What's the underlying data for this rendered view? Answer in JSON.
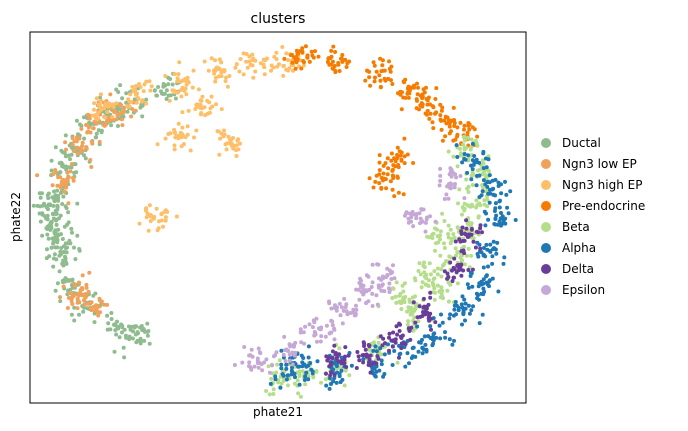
{
  "chart_data": {
    "type": "scatter",
    "title": "clusters",
    "xlabel": "phate21",
    "ylabel": "phate22",
    "xlim": [
      0,
      100
    ],
    "ylim": [
      0,
      100
    ],
    "grid": false,
    "ticks": false,
    "legend_placement": "right-outside",
    "series": [
      {
        "name": "Ductal",
        "color": "#8fbc8f"
      },
      {
        "name": "Ngn3 low EP",
        "color": "#f0a15a"
      },
      {
        "name": "Ngn3 high EP",
        "color": "#ffbf69"
      },
      {
        "name": "Pre-endocrine",
        "color": "#f57c00"
      },
      {
        "name": "Beta",
        "color": "#b5de8c"
      },
      {
        "name": "Alpha",
        "color": "#1f77b4"
      },
      {
        "name": "Delta",
        "color": "#6a3d9a"
      },
      {
        "name": "Epsilon",
        "color": "#c5a8d6"
      }
    ],
    "density": {
      "Ductal": [
        [
          5,
          55
        ],
        [
          4,
          48
        ],
        [
          6,
          40
        ],
        [
          8,
          33
        ],
        [
          12,
          26
        ],
        [
          18,
          20
        ],
        [
          22,
          18
        ],
        [
          7,
          62
        ],
        [
          9,
          68
        ],
        [
          12,
          74
        ],
        [
          16,
          78
        ],
        [
          20,
          81
        ],
        [
          28,
          84
        ],
        [
          4,
          52
        ],
        [
          6,
          45
        ]
      ],
      "Ngn3 low EP": [
        [
          7,
          60
        ],
        [
          10,
          70
        ],
        [
          14,
          76
        ],
        [
          9,
          30
        ],
        [
          12,
          27
        ],
        [
          18,
          79
        ]
      ],
      "Ngn3 high EP": [
        [
          15,
          80
        ],
        [
          22,
          84
        ],
        [
          30,
          86
        ],
        [
          38,
          89
        ],
        [
          45,
          91
        ],
        [
          52,
          92
        ],
        [
          35,
          80
        ],
        [
          40,
          70
        ],
        [
          30,
          72
        ],
        [
          25,
          50
        ]
      ],
      "Pre-endocrine": [
        [
          55,
          93
        ],
        [
          62,
          92
        ],
        [
          70,
          89
        ],
        [
          76,
          85
        ],
        [
          80,
          81
        ],
        [
          84,
          76
        ],
        [
          88,
          72
        ],
        [
          74,
          65
        ],
        [
          72,
          60
        ]
      ],
      "Beta": [
        [
          88,
          68
        ],
        [
          91,
          62
        ],
        [
          90,
          55
        ],
        [
          88,
          48
        ],
        [
          86,
          40
        ],
        [
          82,
          30
        ],
        [
          78,
          24
        ],
        [
          70,
          15
        ],
        [
          62,
          9
        ],
        [
          55,
          7
        ],
        [
          50,
          7
        ],
        [
          83,
          45
        ],
        [
          80,
          35
        ],
        [
          75,
          28
        ]
      ],
      "Alpha": [
        [
          89,
          65
        ],
        [
          93,
          58
        ],
        [
          94,
          50
        ],
        [
          93,
          40
        ],
        [
          91,
          32
        ],
        [
          87,
          24
        ],
        [
          82,
          18
        ],
        [
          76,
          14
        ],
        [
          70,
          11
        ],
        [
          62,
          9
        ],
        [
          55,
          10
        ],
        [
          52,
          9
        ]
      ],
      "Delta": [
        [
          88,
          45
        ],
        [
          86,
          36
        ],
        [
          80,
          24
        ],
        [
          74,
          18
        ],
        [
          68,
          13
        ],
        [
          62,
          11
        ]
      ],
      "Epsilon": [
        [
          46,
          11
        ],
        [
          52,
          15
        ],
        [
          58,
          20
        ],
        [
          63,
          25
        ],
        [
          68,
          30
        ],
        [
          72,
          34
        ],
        [
          85,
          60
        ],
        [
          78,
          50
        ]
      ]
    }
  }
}
